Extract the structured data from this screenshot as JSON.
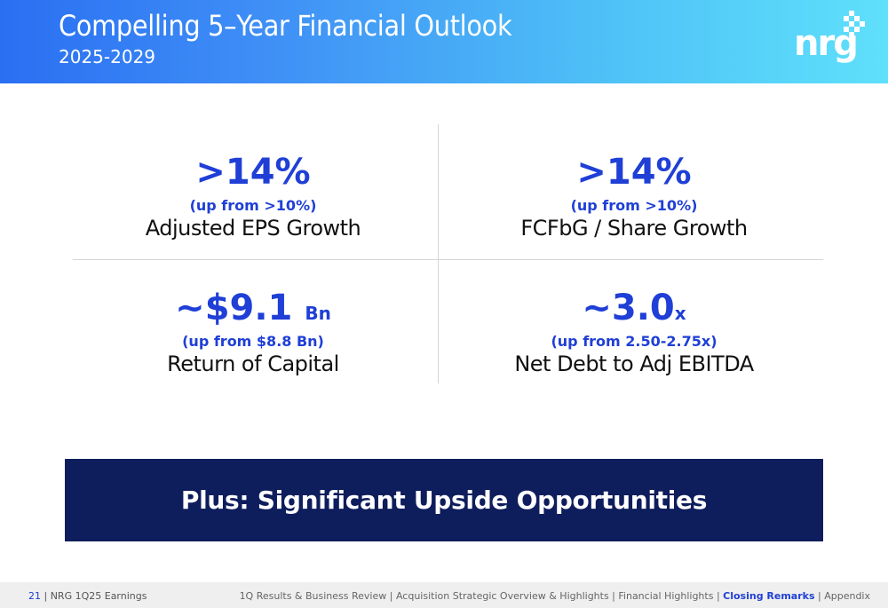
{
  "header": {
    "title": "Compelling 5–Year Financial Outlook",
    "subtitle": "2025-2029",
    "logo_text": "nrg"
  },
  "metrics": [
    {
      "value": ">14%",
      "unit": "",
      "prev": "(up from >10%)",
      "label": "Adjusted EPS Growth"
    },
    {
      "value": ">14%",
      "unit": "",
      "prev": "(up from >10%)",
      "label": "FCFbG / Share Growth"
    },
    {
      "value": "~$9.1",
      "unit": "Bn",
      "prev": "(up from $8.8 Bn)",
      "label": "Return of Capital"
    },
    {
      "value": "~3.0",
      "unit": "x",
      "prev": "(up from 2.50-2.75x)",
      "label": "Net Debt to Adj EBITDA"
    }
  ],
  "banner": {
    "text": "Plus: Significant Upside Opportunities"
  },
  "footer": {
    "page_number": "21",
    "deck_name": "| NRG 1Q25 Earnings",
    "nav": [
      {
        "label": "1Q Results & Business Review",
        "active": false
      },
      {
        "label": "Acquisition Strategic Overview & Highlights",
        "active": false
      },
      {
        "label": "Financial Highlights",
        "active": false
      },
      {
        "label": "Closing Remarks",
        "active": true
      },
      {
        "label": "Appendix",
        "active": false
      }
    ],
    "separator": " | "
  },
  "colors": {
    "accent_blue": "#1f3fd6",
    "banner_navy": "#0e1d5c",
    "header_gradient_start": "#2a6ff2",
    "header_gradient_end": "#5fe0fb"
  }
}
